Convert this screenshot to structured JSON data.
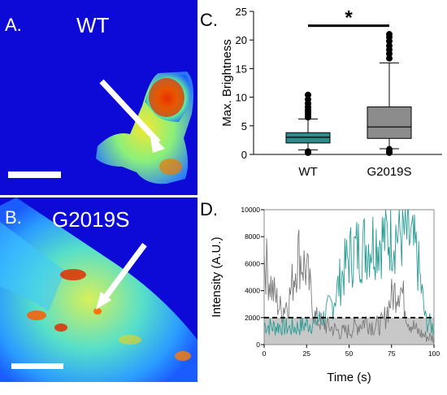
{
  "panels": {
    "a": {
      "letter": "A.",
      "genotype": "WT"
    },
    "b": {
      "letter": "B.",
      "genotype": "G2019S"
    },
    "c": {
      "letter": "C."
    },
    "d": {
      "letter": "D."
    }
  },
  "chart_data": [
    {
      "type": "box",
      "panel": "C",
      "title": "",
      "xlabel": "",
      "ylabel": "Max. Brightness",
      "ylim": [
        0,
        25
      ],
      "yticks": [
        0,
        5,
        10,
        15,
        20,
        25
      ],
      "categories": [
        "WT",
        "G2019S"
      ],
      "colors": [
        "#2e8b8b",
        "#8c8c8c"
      ],
      "boxes": [
        {
          "name": "WT",
          "whisker_low": 0.8,
          "q1": 2.0,
          "median": 3.0,
          "q3": 3.8,
          "whisker_high": 6.2,
          "outliers": [
            6.5,
            7.0,
            7.4,
            7.8,
            8.3,
            8.9,
            9.6,
            10.4,
            0.5,
            0.3
          ]
        },
        {
          "name": "G2019S",
          "whisker_low": 1.0,
          "q1": 2.8,
          "median": 4.8,
          "q3": 8.3,
          "whisker_high": 16.0,
          "outliers": [
            16.8,
            17.6,
            18.3,
            19.0,
            19.8,
            20.5,
            21.0,
            0.9,
            0.5,
            0.3
          ]
        }
      ],
      "significance": {
        "between": [
          "WT",
          "G2019S"
        ],
        "label": "*"
      }
    },
    {
      "type": "line",
      "panel": "D",
      "title": "",
      "xlabel": "Time (s)",
      "ylabel": "Intensity (A.U.)",
      "xlim": [
        0,
        100
      ],
      "ylim": [
        0,
        10000
      ],
      "xticks": [
        0,
        25,
        50,
        75,
        100
      ],
      "yticks": [
        0,
        2000,
        4000,
        6000,
        8000,
        10000
      ],
      "threshold": 2000,
      "series": [
        {
          "color": "#2a9d95",
          "x": [
            0,
            5,
            10,
            15,
            20,
            25,
            30,
            35,
            40,
            45,
            50,
            55,
            60,
            65,
            70,
            75,
            80,
            85,
            90,
            95,
            100
          ],
          "y": [
            1500,
            1300,
            1400,
            1200,
            1300,
            1500,
            1700,
            2000,
            3000,
            4800,
            6500,
            7100,
            7400,
            7800,
            7900,
            8200,
            8300,
            8000,
            6500,
            1800,
            1200
          ]
        },
        {
          "color": "#7a7a7a",
          "x": [
            0,
            5,
            10,
            15,
            20,
            25,
            30,
            35,
            40,
            45,
            50,
            55,
            60,
            65,
            70,
            75,
            80,
            85,
            90,
            95,
            100
          ],
          "y": [
            6500,
            4000,
            2500,
            3500,
            6800,
            5500,
            2000,
            1500,
            1200,
            900,
            1000,
            1400,
            1800,
            1300,
            1600,
            3500,
            4500,
            1800,
            1000,
            600,
            500
          ]
        }
      ]
    }
  ]
}
